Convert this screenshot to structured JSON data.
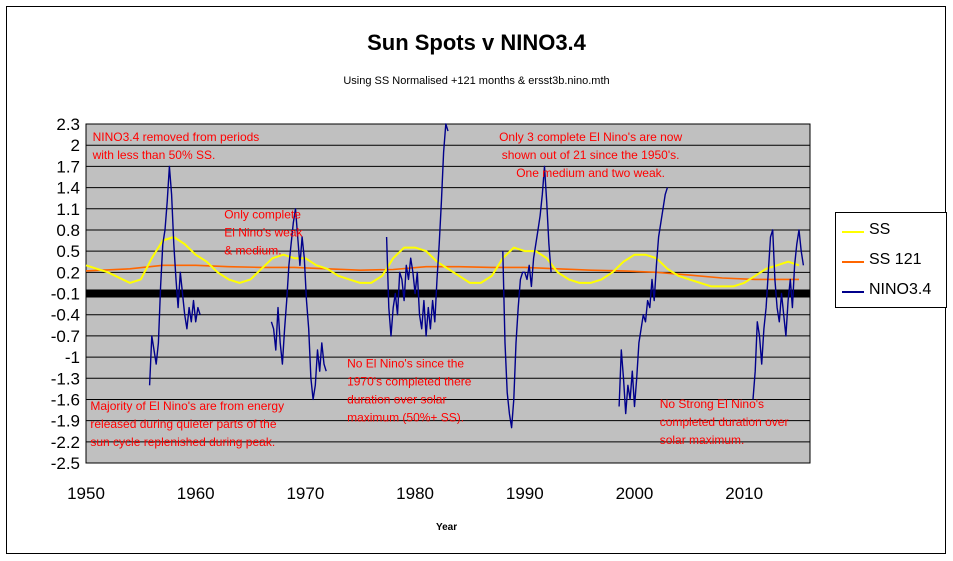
{
  "chart_data": {
    "type": "line",
    "title": "Sun Spots v NINO3.4",
    "subtitle": "Using SS Normalised +121 months & ersst3b.nino.mth",
    "xlabel": "Year",
    "ylabel": "",
    "xlim": [
      1950,
      2016
    ],
    "ylim": [
      -2.5,
      2.3
    ],
    "x_ticks": [
      "1950",
      "1960",
      "1970",
      "1980",
      "1990",
      "2000",
      "2010"
    ],
    "y_ticks": [
      "2.3",
      "2",
      "1.7",
      "1.4",
      "1.1",
      "0.8",
      "0.5",
      "0.2",
      "-0.1",
      "-0.4",
      "-0.7",
      "-1",
      "-1.3",
      "-1.6",
      "-1.9",
      "-2.2",
      "-2.5"
    ],
    "y_tick_values": [
      2.3,
      2.0,
      1.7,
      1.4,
      1.1,
      0.8,
      0.5,
      0.2,
      -0.1,
      -0.4,
      -0.7,
      -1.0,
      -1.3,
      -1.6,
      -1.9,
      -2.2,
      -2.5
    ],
    "zero_band_y": -0.1,
    "grid": true,
    "plot_background": "#c0c0c0",
    "legend_position": "right",
    "series": [
      {
        "name": "SS",
        "color": "#ffff00",
        "x": [
          1950,
          1952,
          1954,
          1955,
          1956,
          1957,
          1958,
          1959,
          1960,
          1961,
          1962,
          1963,
          1964,
          1965,
          1966,
          1967,
          1968,
          1969,
          1970,
          1971,
          1972,
          1973,
          1974,
          1975,
          1976,
          1977,
          1978,
          1979,
          1980,
          1981,
          1982,
          1983,
          1984,
          1985,
          1986,
          1987,
          1988,
          1989,
          1990,
          1991,
          1992,
          1993,
          1994,
          1995,
          1996,
          1997,
          1998,
          1999,
          2000,
          2001,
          2002,
          2003,
          2004,
          2005,
          2006,
          2007,
          2008,
          2009,
          2010,
          2011,
          2012,
          2013,
          2014,
          2015
        ],
        "y": [
          0.3,
          0.2,
          0.05,
          0.1,
          0.4,
          0.65,
          0.7,
          0.6,
          0.45,
          0.35,
          0.2,
          0.1,
          0.05,
          0.1,
          0.25,
          0.4,
          0.45,
          0.4,
          0.4,
          0.3,
          0.25,
          0.15,
          0.1,
          0.05,
          0.05,
          0.15,
          0.4,
          0.55,
          0.55,
          0.5,
          0.35,
          0.25,
          0.15,
          0.05,
          0.05,
          0.15,
          0.4,
          0.55,
          0.5,
          0.5,
          0.4,
          0.2,
          0.1,
          0.05,
          0.05,
          0.1,
          0.2,
          0.35,
          0.45,
          0.45,
          0.4,
          0.25,
          0.15,
          0.1,
          0.05,
          0.0,
          0.0,
          0.0,
          0.05,
          0.15,
          0.25,
          0.3,
          0.35,
          0.3
        ]
      },
      {
        "name": "SS 121",
        "color": "#ff6600",
        "x": [
          1950,
          1954,
          1957,
          1960,
          1963,
          1966,
          1969,
          1972,
          1975,
          1978,
          1981,
          1984,
          1987,
          1990,
          1993,
          1996,
          1999,
          2002,
          2005,
          2008,
          2011,
          2014,
          2015
        ],
        "y": [
          0.22,
          0.25,
          0.3,
          0.3,
          0.28,
          0.27,
          0.27,
          0.25,
          0.23,
          0.24,
          0.28,
          0.28,
          0.27,
          0.27,
          0.25,
          0.23,
          0.22,
          0.2,
          0.16,
          0.12,
          0.1,
          0.1,
          0.1
        ]
      },
      {
        "name": "NINO3.4",
        "color": "#00008b",
        "segments": [
          {
            "x": [
              1955.8,
              1956.0,
              1956.2,
              1956.4,
              1956.6,
              1956.8,
              1957.0,
              1957.2,
              1957.4,
              1957.6,
              1957.8,
              1958.0,
              1958.2,
              1958.4,
              1958.6,
              1958.8,
              1959.0,
              1959.2,
              1959.4,
              1959.6,
              1959.8,
              1960.0,
              1960.2,
              1960.4
            ],
            "y": [
              -1.4,
              -0.7,
              -0.9,
              -1.1,
              -0.8,
              0.0,
              0.6,
              0.8,
              1.2,
              1.7,
              1.3,
              0.6,
              0.1,
              -0.3,
              0.2,
              -0.1,
              -0.4,
              -0.6,
              -0.3,
              -0.5,
              -0.2,
              -0.5,
              -0.3,
              -0.4
            ]
          },
          {
            "x": [
              1966.9,
              1967.1,
              1967.3,
              1967.5,
              1967.7,
              1967.9,
              1968.1,
              1968.3,
              1968.5,
              1968.7,
              1968.9,
              1969.1,
              1969.3,
              1969.5,
              1969.7,
              1969.9,
              1970.1,
              1970.3,
              1970.5,
              1970.7,
              1970.9,
              1971.1,
              1971.3,
              1971.5,
              1971.7,
              1971.9
            ],
            "y": [
              -0.5,
              -0.6,
              -0.9,
              -0.3,
              -0.8,
              -1.1,
              -0.6,
              -0.2,
              0.3,
              0.6,
              0.9,
              1.1,
              0.7,
              0.3,
              0.7,
              0.4,
              -0.2,
              -0.6,
              -1.3,
              -1.6,
              -1.4,
              -0.9,
              -1.2,
              -0.8,
              -1.1,
              -1.2
            ]
          },
          {
            "x": [
              1977.4,
              1977.6,
              1977.8,
              1978.0,
              1978.2,
              1978.4,
              1978.6,
              1978.8,
              1979.0,
              1979.2,
              1979.4,
              1979.6,
              1979.8,
              1980.0,
              1980.2,
              1980.4,
              1980.6,
              1980.8,
              1981.0,
              1981.2,
              1981.4,
              1981.6,
              1981.8,
              1982.0,
              1982.2,
              1982.4,
              1982.6,
              1982.8,
              1983.0
            ],
            "y": [
              0.7,
              -0.3,
              -0.7,
              -0.3,
              -0.1,
              -0.4,
              0.2,
              0.1,
              -0.2,
              0.3,
              0.1,
              0.4,
              0.2,
              -0.1,
              0.2,
              -0.4,
              -0.6,
              -0.2,
              -0.7,
              -0.3,
              -0.6,
              -0.2,
              -0.5,
              0.1,
              0.6,
              1.2,
              1.9,
              2.3,
              2.2
            ]
          },
          {
            "x": [
              1988.0,
              1988.2,
              1988.4,
              1988.6,
              1988.8,
              1989.0,
              1989.2,
              1989.4,
              1989.6,
              1989.8,
              1990.0,
              1990.2,
              1990.4,
              1990.6,
              1990.8,
              1991.0,
              1991.2,
              1991.4,
              1991.6,
              1991.8,
              1992.0,
              1992.2,
              1992.4
            ],
            "y": [
              0.5,
              -0.8,
              -1.5,
              -1.8,
              -2.0,
              -1.6,
              -0.8,
              -0.3,
              0.1,
              0.2,
              0.2,
              0.1,
              0.3,
              0.0,
              0.4,
              0.6,
              0.8,
              1.0,
              1.3,
              1.7,
              1.2,
              0.6,
              0.2
            ]
          },
          {
            "x": [
              1998.6,
              1998.8,
              1999.0,
              1999.2,
              1999.4,
              1999.6,
              1999.8,
              2000.0,
              2000.2,
              2000.4,
              2000.6,
              2000.8,
              2001.0,
              2001.2,
              2001.4,
              2001.6,
              2001.8,
              2002.0,
              2002.2,
              2002.4,
              2002.6,
              2002.8,
              2003.0
            ],
            "y": [
              -1.7,
              -0.9,
              -1.3,
              -1.8,
              -1.4,
              -1.6,
              -1.2,
              -1.7,
              -1.3,
              -0.8,
              -0.6,
              -0.4,
              -0.5,
              -0.2,
              -0.3,
              0.1,
              -0.2,
              0.3,
              0.7,
              0.9,
              1.1,
              1.3,
              1.4
            ]
          },
          {
            "x": [
              2010.8,
              2011.0,
              2011.2,
              2011.4,
              2011.6,
              2011.8,
              2012.0,
              2012.2,
              2012.4,
              2012.6,
              2012.8,
              2013.0,
              2013.2,
              2013.4,
              2013.6,
              2013.8,
              2014.0,
              2014.2,
              2014.4,
              2014.6,
              2014.8,
              2015.0,
              2015.2,
              2015.4
            ],
            "y": [
              -1.6,
              -1.2,
              -0.5,
              -0.7,
              -1.1,
              -0.6,
              -0.3,
              0.2,
              0.7,
              0.8,
              0.1,
              -0.3,
              -0.5,
              -0.1,
              -0.4,
              -0.7,
              -0.2,
              0.1,
              -0.3,
              0.3,
              0.6,
              0.8,
              0.5,
              0.3
            ]
          }
        ]
      }
    ],
    "annotations": [
      {
        "lines": [
          "NINO3.4 removed from periods",
          "with less than 50% SS."
        ],
        "x": 1950.6,
        "y": 2.06,
        "align": "start"
      },
      {
        "lines": [
          "Only complete",
          "El Nino's weak",
          "& medium."
        ],
        "x": 1962.6,
        "y": 0.96,
        "align": "start"
      },
      {
        "lines": [
          "Only 3 complete El Nino's are now",
          "shown out of 21 since the 1950's.",
          "One medium and two weak."
        ],
        "x": 1996.0,
        "y": 2.06,
        "align": "middle"
      },
      {
        "lines": [
          "No El Nino's since the",
          "1970's completed there",
          "duration over solar",
          "maximum (50%+ SS)."
        ],
        "x": 1973.8,
        "y": -1.15,
        "align": "start"
      },
      {
        "lines": [
          "Majority of El Nino's are from energy",
          "released during quieter parts of the",
          "sun cycle replenished during peak."
        ],
        "x": 1950.4,
        "y": -1.75,
        "align": "start"
      },
      {
        "lines": [
          "No Strong El Nino's",
          "completed duration over",
          "solar maximum."
        ],
        "x": 2002.3,
        "y": -1.72,
        "align": "start"
      }
    ]
  }
}
